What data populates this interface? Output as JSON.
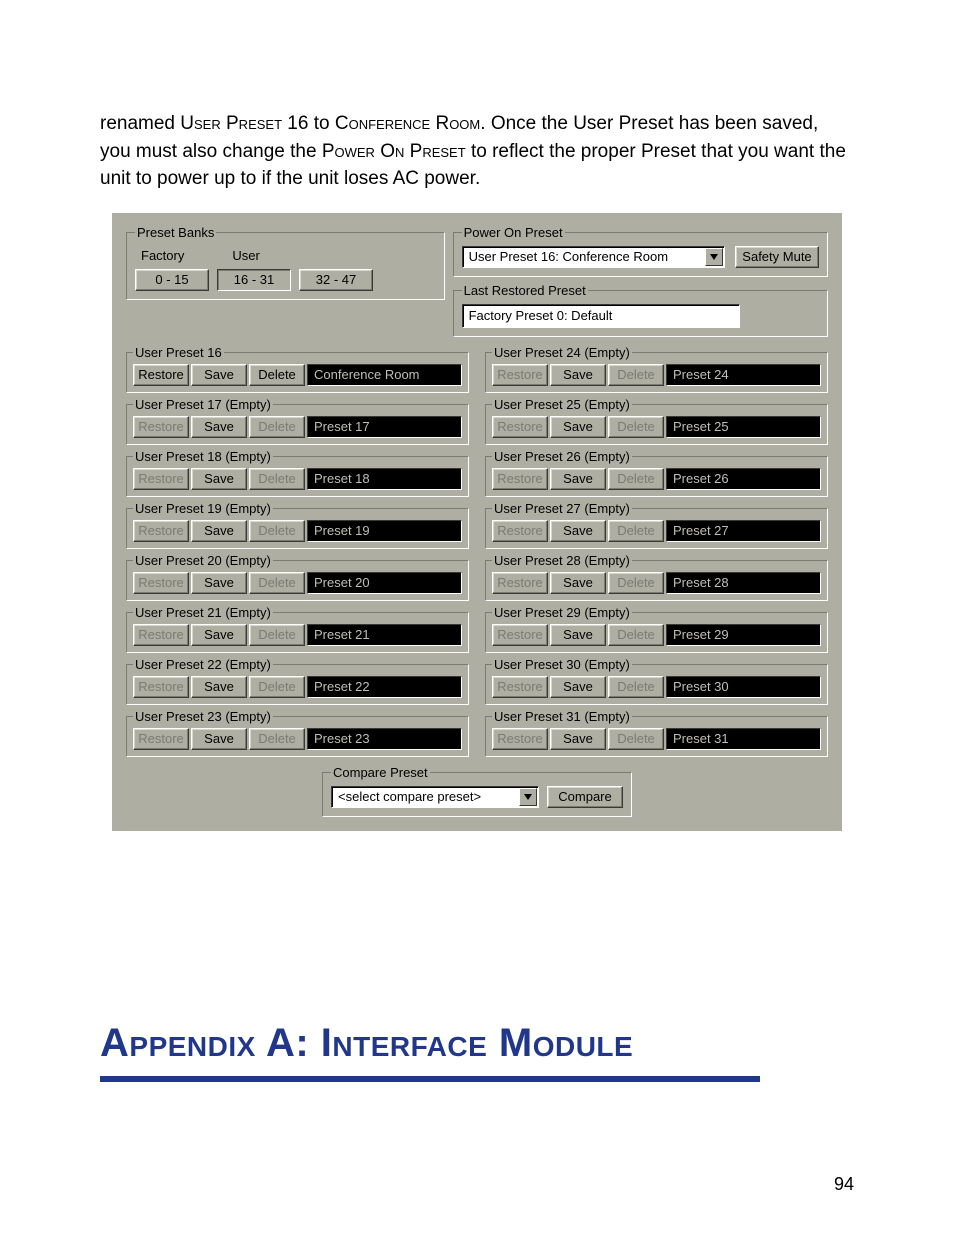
{
  "paragraph": {
    "seg1": "renamed ",
    "sc1": "User Preset",
    "seg2": " 16 to ",
    "sc2": "Conference Room",
    "seg3": ".  Once the User Preset has been saved, you must also change the ",
    "sc3": "Power On Preset",
    "seg4": " to reflect the proper Preset that you want the unit to power up to if the unit loses AC power."
  },
  "banks": {
    "legend": "Preset Banks",
    "factory_label": "Factory",
    "user_label": "User",
    "buttons": [
      "0 - 15",
      "16 - 31",
      "32 - 47"
    ],
    "active_index": 1
  },
  "power_on": {
    "legend": "Power On Preset",
    "selected": "User Preset 16: Conference Room",
    "safety_mute": "Safety Mute"
  },
  "last_restored": {
    "legend": "Last Restored Preset",
    "value": "Factory Preset 0: Default"
  },
  "preset_actions": {
    "restore": "Restore",
    "save": "Save",
    "delete": "Delete"
  },
  "presets": [
    {
      "legend": "User Preset 16",
      "name": "Conference Room",
      "empty": false
    },
    {
      "legend": "User Preset 17 (Empty)",
      "name": "Preset 17",
      "empty": true
    },
    {
      "legend": "User Preset 18 (Empty)",
      "name": "Preset 18",
      "empty": true
    },
    {
      "legend": "User Preset 19 (Empty)",
      "name": "Preset 19",
      "empty": true
    },
    {
      "legend": "User Preset 20 (Empty)",
      "name": "Preset 20",
      "empty": true
    },
    {
      "legend": "User Preset 21 (Empty)",
      "name": "Preset 21",
      "empty": true
    },
    {
      "legend": "User Preset 22 (Empty)",
      "name": "Preset 22",
      "empty": true
    },
    {
      "legend": "User Preset 23 (Empty)",
      "name": "Preset 23",
      "empty": true
    },
    {
      "legend": "User Preset 24 (Empty)",
      "name": "Preset 24",
      "empty": true
    },
    {
      "legend": "User Preset 25 (Empty)",
      "name": "Preset 25",
      "empty": true
    },
    {
      "legend": "User Preset 26 (Empty)",
      "name": "Preset 26",
      "empty": true
    },
    {
      "legend": "User Preset 27 (Empty)",
      "name": "Preset 27",
      "empty": true
    },
    {
      "legend": "User Preset 28 (Empty)",
      "name": "Preset 28",
      "empty": true
    },
    {
      "legend": "User Preset 29 (Empty)",
      "name": "Preset 29",
      "empty": true
    },
    {
      "legend": "User Preset 30 (Empty)",
      "name": "Preset 30",
      "empty": true
    },
    {
      "legend": "User Preset 31 (Empty)",
      "name": "Preset 31",
      "empty": true
    }
  ],
  "compare": {
    "legend": "Compare Preset",
    "placeholder": "<select compare preset>",
    "button": "Compare"
  },
  "appendix_heading": "Appendix A:  Interface Module",
  "page_number": "94",
  "colors": {
    "panel_bg": "#AFAEA3",
    "heading": "#20378c"
  }
}
